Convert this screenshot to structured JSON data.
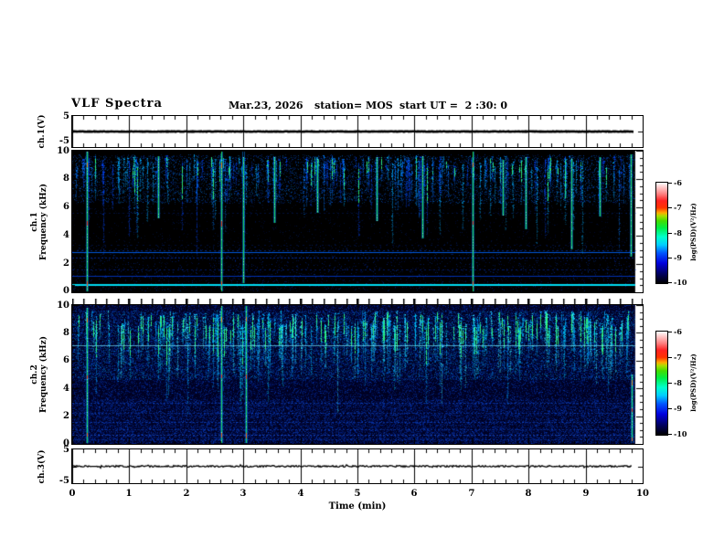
{
  "header": {
    "title": "VLF Spectra",
    "date": "Mar.23, 2026",
    "station": "station= MOS",
    "start_ut": "start UT =  2 :30: 0"
  },
  "x_axis": {
    "label": "Time (min)",
    "ticks": [
      "0",
      "1",
      "2",
      "3",
      "4",
      "5",
      "6",
      "7",
      "8",
      "9",
      "10"
    ]
  },
  "panels": {
    "ch1_wave": {
      "label": "ch.1(V)",
      "ytop": "5",
      "ybottom": "-5"
    },
    "ch1_spec": {
      "label_line1": "ch.1",
      "label_line2": "Frequency (kHz)",
      "yticks": [
        "10",
        "8",
        "6",
        "4",
        "2",
        "0"
      ]
    },
    "ch2_spec": {
      "label_line1": "ch.2",
      "label_line2": "Frequency (kHz)",
      "yticks": [
        "10",
        "8",
        "6",
        "4",
        "2",
        "0"
      ]
    },
    "ch3_wave": {
      "label": "ch.3(V)",
      "ytop": "5",
      "ybottom": "-5"
    }
  },
  "colorbars": [
    {
      "label": "log(PSD)(V²/Hz)",
      "ticks": [
        "-6",
        "-7",
        "-8",
        "-9",
        "-10"
      ]
    },
    {
      "label": "log(PSD)(V²/Hz)",
      "ticks": [
        "-6",
        "-7",
        "-8",
        "-9",
        "-10"
      ]
    }
  ],
  "colormap": {
    "stops": [
      [
        0,
        "#000000"
      ],
      [
        0.1,
        "#000066"
      ],
      [
        0.2,
        "#0000dd"
      ],
      [
        0.3,
        "#0055ff"
      ],
      [
        0.38,
        "#00ccff"
      ],
      [
        0.46,
        "#00ffcc"
      ],
      [
        0.55,
        "#00ee44"
      ],
      [
        0.62,
        "#44dd00"
      ],
      [
        0.67,
        "#aadd00"
      ],
      [
        0.7,
        "#ffaa00"
      ],
      [
        0.75,
        "#ff3300"
      ],
      [
        0.82,
        "#ff2222"
      ],
      [
        0.88,
        "#ff7777"
      ],
      [
        0.94,
        "#ffbbbb"
      ],
      [
        1,
        "#ffffff"
      ]
    ]
  },
  "chart_data": [
    {
      "id": "wave-ch1",
      "type": "line",
      "xlabel": "Time (min)",
      "x_range_min": [
        0,
        10
      ],
      "y_range_v": [
        -5,
        5
      ],
      "mean_value_v": 0,
      "noise": 0.3,
      "data_end_min": 9.85,
      "line_width": 2.6,
      "seed": 3,
      "spike_prob": 0.0,
      "spike_amp": 0
    },
    {
      "id": "spec-ch1",
      "type": "heatmap",
      "xlabel": "Time (min)",
      "ylabel": "Frequency (kHz)",
      "x_range_min": [
        0,
        10
      ],
      "freq_range_khz": [
        0,
        10
      ],
      "psd_range_log": [
        -10,
        -6
      ],
      "data_end_min": 9.87,
      "seed": 11,
      "background": "#000000",
      "band_speckle": {
        "count": 9000,
        "f": [
          6.3,
          9.7
        ],
        "colors": [
          "#0033bb",
          "#0055ff",
          "#0088ff"
        ],
        "alpha": 0.5
      },
      "mid_speckle": {
        "count": 1200,
        "f": [
          3.4,
          6.4
        ],
        "colors": [
          "#0022aa",
          "#0044dd"
        ],
        "alpha": 0.3
      },
      "low_speckle": {
        "count": 2600,
        "f": [
          0.1,
          3.3
        ],
        "colors": [
          "#0022aa",
          "#0044dd"
        ],
        "alpha": 0.45
      },
      "streaks": {
        "count": 230,
        "f_top": [
          8.8,
          9.7
        ],
        "f_len": [
          0.8,
          3.4
        ],
        "deep_frac": 0.16,
        "deep_extra": [
          1.5,
          4.5
        ],
        "colors": [
          "#0044ff",
          "#0077ff",
          "#00aaff"
        ],
        "core_green_frac": 0.22
      },
      "h_lines": [
        {
          "f": 0.55,
          "color": "#00e8ff",
          "w": 2,
          "a": 0.95,
          "dash": 0
        },
        {
          "f": 1.15,
          "color": "#0044ff",
          "w": 1,
          "a": 0.7,
          "dash": 0
        },
        {
          "f": 1.6,
          "color": "#0033dd",
          "w": 1,
          "a": 0.45,
          "dash": 3
        },
        {
          "f": 2.45,
          "color": "#0044ff",
          "w": 1,
          "a": 0.55,
          "dash": 2
        },
        {
          "f": 2.78,
          "color": "#0066ff",
          "w": 1,
          "a": 0.85,
          "dash": 0
        },
        {
          "f": 2.95,
          "color": "#0044dd",
          "w": 1,
          "a": 0.5,
          "dash": 3
        },
        {
          "f": 3.35,
          "color": "#0033bb",
          "w": 1,
          "a": 0.3,
          "dash": 5
        },
        {
          "f": 5.6,
          "color": "#0033bb",
          "w": 1,
          "a": 0.3,
          "dash": 3
        }
      ],
      "events": [
        {
          "t": 0.27,
          "f_top": 9.9,
          "f_bot": 0.05,
          "hot": true
        },
        {
          "t": 1.52,
          "f_top": 9.6,
          "f_bot": 5.2,
          "hot": false
        },
        {
          "t": 2.62,
          "f_top": 9.9,
          "f_bot": 0.05,
          "hot": true
        },
        {
          "t": 3.0,
          "f_top": 9.9,
          "f_bot": 0.6,
          "hot": false
        },
        {
          "t": 3.55,
          "f_top": 9.5,
          "f_bot": 4.9,
          "hot": false
        },
        {
          "t": 4.3,
          "f_top": 9.4,
          "f_bot": 5.6,
          "hot": false
        },
        {
          "t": 5.35,
          "f_top": 9.5,
          "f_bot": 5.0,
          "hot": false
        },
        {
          "t": 6.15,
          "f_top": 9.6,
          "f_bot": 3.8,
          "hot": false
        },
        {
          "t": 7.03,
          "f_top": 9.9,
          "f_bot": 0.05,
          "hot": true
        },
        {
          "t": 7.55,
          "f_top": 9.3,
          "f_bot": 5.4,
          "hot": false
        },
        {
          "t": 7.95,
          "f_top": 9.5,
          "f_bot": 4.4,
          "hot": false
        },
        {
          "t": 8.75,
          "f_top": 9.4,
          "f_bot": 3.0,
          "hot": false
        },
        {
          "t": 9.25,
          "f_top": 9.5,
          "f_bot": 5.3,
          "hot": false
        },
        {
          "t": 9.8,
          "f_top": 9.7,
          "f_bot": 2.5,
          "hot": false
        }
      ]
    },
    {
      "id": "spec-ch2",
      "type": "heatmap",
      "xlabel": "Time (min)",
      "ylabel": "Frequency (kHz)",
      "x_range_min": [
        0,
        10
      ],
      "freq_range_khz": [
        0,
        10
      ],
      "psd_range_log": [
        -10,
        -6
      ],
      "data_end_min": 9.87,
      "seed": 23,
      "background": "#000122",
      "full_speckle": {
        "count": 52000,
        "colors": [
          "#000d55",
          "#001a88",
          "#0033bb",
          "#0044dd",
          "#0d55ee"
        ],
        "alpha": 0.5
      },
      "band_speckle": {
        "count": 14000,
        "f": [
          4.6,
          9.6
        ],
        "colors": [
          "#0055ff",
          "#0088ff",
          "#00bbff"
        ],
        "alpha": 0.45
      },
      "low_speckle": {
        "count": 9000,
        "f": [
          0.05,
          3.2
        ],
        "colors": [
          "#0033bb",
          "#0044dd",
          "#1155ee"
        ],
        "alpha": 0.4
      },
      "streaks": {
        "count": 300,
        "f_top": [
          8.3,
          9.6
        ],
        "f_len": [
          1.2,
          4.2
        ],
        "deep_frac": 0.12,
        "deep_extra": [
          1.0,
          3.0
        ],
        "colors": [
          "#00aaff",
          "#00d5ff",
          "#33eeff"
        ],
        "core_green_frac": 0.45
      },
      "h_lines": [
        {
          "f": 7.1,
          "color": "#77eeff",
          "w": 1,
          "a": 0.65,
          "dash": 0
        },
        {
          "f": 2.9,
          "color": "#1155ee",
          "w": 1,
          "a": 0.5,
          "dash": 2
        },
        {
          "f": 2.2,
          "color": "#1155ee",
          "w": 1,
          "a": 0.45,
          "dash": 2
        },
        {
          "f": 1.55,
          "color": "#1155ee",
          "w": 1,
          "a": 0.5,
          "dash": 2
        },
        {
          "f": 1.05,
          "color": "#1155ee",
          "w": 1,
          "a": 0.45,
          "dash": 2
        },
        {
          "f": 0.6,
          "color": "#2266ff",
          "w": 1,
          "a": 0.55,
          "dash": 2
        },
        {
          "f": 0.3,
          "color": "#1155ee",
          "w": 1,
          "a": 0.4,
          "dash": 2
        }
      ],
      "events": [
        {
          "t": 0.27,
          "f_top": 9.8,
          "f_bot": 0.05,
          "hot": true
        },
        {
          "t": 2.62,
          "f_top": 9.9,
          "f_bot": 0.05,
          "hot": true
        },
        {
          "t": 3.05,
          "f_top": 9.9,
          "f_bot": 0.05,
          "hot": true
        },
        {
          "t": 9.82,
          "f_top": 5.0,
          "f_bot": 0.05,
          "hot": true
        }
      ]
    },
    {
      "id": "wave-ch3",
      "type": "line",
      "xlabel": "Time (min)",
      "x_range_min": [
        0,
        10
      ],
      "y_range_v": [
        -5,
        5
      ],
      "mean_value_v": 0,
      "noise": 0.9,
      "data_end_min": 9.82,
      "line_width": 1.3,
      "seed": 9,
      "spike_prob": 0.04,
      "spike_amp": 2.2
    }
  ]
}
